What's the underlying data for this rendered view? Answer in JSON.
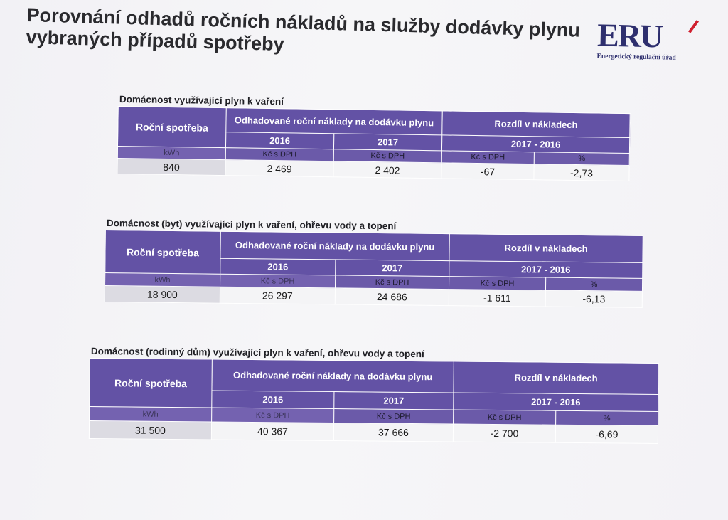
{
  "title": "Porovnání odhadů ročních nákladů na služby dodávky plynu vybraných případů spotřeby",
  "logo": {
    "mark": "ERU",
    "subtitle": "Energetický regulační úřad"
  },
  "column_headers": {
    "annual_consumption": "Roční spotřeba",
    "estimated_costs": "Odhadované roční náklady na dodávku plynu",
    "cost_difference": "Rozdíl v nákladech",
    "year_a": "2016",
    "year_b": "2017",
    "period": "2017 - 2016",
    "unit_kwh": "kWh",
    "unit_czk": "Kč s DPH",
    "unit_pct": "%"
  },
  "tables": [
    {
      "heading": "Domácnost využívající plyn k vaření",
      "row": {
        "consumption": "840",
        "cost_2016": "2 469",
        "cost_2017": "2 402",
        "diff_czk": "-67",
        "diff_pct": "-2,73"
      }
    },
    {
      "heading": "Domácnost (byt) využívající plyn k vaření, ohřevu vody a topení",
      "row": {
        "consumption": "18 900",
        "cost_2016": "26 297",
        "cost_2017": "24 686",
        "diff_czk": "-1 611",
        "diff_pct": "-6,13"
      }
    },
    {
      "heading": "Domácnost (rodinný dům) využívající plyn k vaření, ohřevu vody a topení",
      "row": {
        "consumption": "31 500",
        "cost_2016": "40 367",
        "cost_2017": "37 666",
        "diff_czk": "-2 700",
        "diff_pct": "-6,69"
      }
    }
  ],
  "colors": {
    "header_purple": "#6352a5",
    "logo_navy": "#2e2f6e",
    "logo_red": "#d01f2e"
  }
}
